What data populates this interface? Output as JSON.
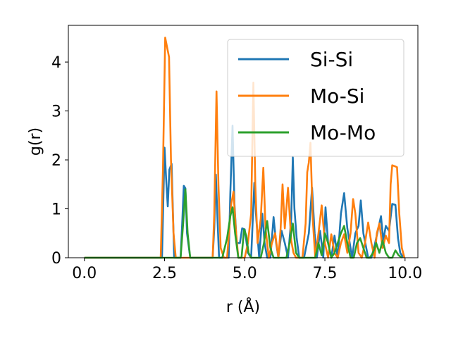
{
  "chart_data": {
    "type": "line",
    "xlabel": "r (Å)",
    "ylabel": "g(r)",
    "xlim": [
      -0.5,
      10.4
    ],
    "ylim": [
      0,
      4.75
    ],
    "xticks": [
      0.0,
      2.5,
      5.0,
      7.5,
      10.0
    ],
    "xtick_labels": [
      "0.0",
      "2.5",
      "5.0",
      "7.5",
      "10.0"
    ],
    "yticks": [
      0,
      1,
      2,
      3,
      4
    ],
    "ytick_labels": [
      "0",
      "1",
      "2",
      "3",
      "4"
    ],
    "grid": false,
    "legend_position": "top-right",
    "series": [
      {
        "name": "Si-Si",
        "color": "#1f77b4",
        "x": [
          0,
          2.35,
          2.42,
          2.5,
          2.55,
          2.6,
          2.65,
          2.72,
          2.8,
          2.88,
          3.0,
          3.05,
          3.1,
          3.15,
          3.2,
          3.3,
          3.45,
          4.0,
          4.05,
          4.1,
          4.15,
          4.2,
          4.3,
          4.5,
          4.55,
          4.62,
          4.68,
          4.75,
          4.85,
          4.92,
          5.0,
          5.1,
          5.2,
          5.3,
          5.35,
          5.45,
          5.55,
          5.62,
          5.7,
          5.8,
          5.9,
          5.98,
          6.05,
          6.15,
          6.25,
          6.35,
          6.45,
          6.5,
          6.55,
          6.62,
          6.7,
          6.85,
          7.0,
          7.1,
          7.18,
          7.25,
          7.35,
          7.45,
          7.52,
          7.6,
          7.7,
          7.8,
          7.9,
          8.0,
          8.1,
          8.2,
          8.35,
          8.45,
          8.55,
          8.62,
          8.7,
          8.85,
          8.95,
          9.05,
          9.15,
          9.25,
          9.32,
          9.4,
          9.5,
          9.6,
          9.7,
          9.78,
          9.85,
          9.95
        ],
        "values": [
          0,
          0,
          0,
          2.25,
          1.6,
          1.05,
          1.8,
          1.92,
          0,
          0,
          0,
          0.7,
          1.47,
          1.42,
          0.5,
          0,
          0,
          0,
          0.6,
          1.7,
          0.8,
          0,
          0,
          0,
          1.3,
          2.7,
          1.1,
          0.3,
          0.3,
          0.6,
          0.58,
          0.1,
          0,
          1.53,
          0.9,
          0,
          0.9,
          0.3,
          0,
          0,
          0.83,
          0.3,
          0,
          0.55,
          0.3,
          0,
          0.8,
          2.05,
          1.0,
          0.4,
          0,
          0,
          0.5,
          1.43,
          0.5,
          0,
          0.55,
          0,
          1.03,
          0.3,
          0,
          0.45,
          0,
          0.9,
          1.32,
          0.6,
          0,
          0.5,
          0.65,
          1.17,
          0.5,
          0,
          0,
          0.25,
          0.55,
          0.85,
          0.35,
          0.65,
          0.55,
          1.1,
          1.08,
          0.4,
          0.1,
          0
        ],
        "legend_label": "Si-Si"
      },
      {
        "name": "Mo-Si",
        "color": "#ff7f0e",
        "x": [
          0,
          2.38,
          2.45,
          2.52,
          2.58,
          2.64,
          2.7,
          2.78,
          2.85,
          3.9,
          4.0,
          4.05,
          4.12,
          4.18,
          4.25,
          4.35,
          4.45,
          4.52,
          4.58,
          4.65,
          4.72,
          4.8,
          5.0,
          5.1,
          5.2,
          5.27,
          5.33,
          5.4,
          5.5,
          5.58,
          5.65,
          5.75,
          5.85,
          5.95,
          6.05,
          6.12,
          6.18,
          6.25,
          6.35,
          6.45,
          6.52,
          6.6,
          6.7,
          6.8,
          6.9,
          6.95,
          7.0,
          7.05,
          7.12,
          7.2,
          7.3,
          7.4,
          7.5,
          7.6,
          7.7,
          7.8,
          7.9,
          8.0,
          8.1,
          8.2,
          8.3,
          8.38,
          8.45,
          8.55,
          8.65,
          8.75,
          8.85,
          8.95,
          9.05,
          9.12,
          9.2,
          9.3,
          9.4,
          9.5,
          9.55,
          9.6,
          9.68,
          9.75,
          9.82,
          9.9,
          9.98
        ],
        "values": [
          0,
          0,
          1.8,
          4.5,
          4.3,
          4.1,
          2.0,
          0.5,
          0,
          0,
          0,
          0.9,
          3.4,
          1.5,
          0.2,
          0,
          0,
          0.6,
          1.1,
          1.35,
          0.6,
          0,
          0,
          0.3,
          0.9,
          3.58,
          1.5,
          0.3,
          0.8,
          1.84,
          0.6,
          0,
          0.3,
          0.5,
          0,
          0.6,
          1.5,
          0.6,
          1.43,
          0.35,
          0.1,
          0,
          0,
          0,
          0.7,
          1.75,
          1.95,
          2.35,
          0.8,
          0,
          0.5,
          1.07,
          0.3,
          0,
          0.48,
          0.1,
          0,
          0.3,
          0.48,
          0.1,
          0.5,
          1.2,
          0.9,
          0.1,
          0,
          0.3,
          0.72,
          0.3,
          0,
          0.5,
          0.7,
          0.2,
          0.45,
          0.3,
          1.5,
          1.89,
          1.87,
          1.85,
          0.9,
          0.2,
          0
        ],
        "legend_label": "Mo-Si"
      },
      {
        "name": "Mo-Mo",
        "color": "#2ca02c",
        "x": [
          0,
          3.0,
          3.08,
          3.15,
          3.22,
          3.3,
          3.45,
          4.3,
          4.45,
          4.55,
          4.62,
          4.7,
          4.8,
          4.9,
          4.98,
          5.05,
          5.12,
          5.2,
          5.5,
          5.6,
          5.7,
          5.8,
          5.9,
          6.0,
          6.3,
          6.4,
          6.5,
          6.6,
          6.7,
          7.2,
          7.3,
          7.4,
          7.5,
          7.6,
          7.7,
          7.8,
          7.9,
          8.0,
          8.1,
          8.2,
          8.3,
          8.4,
          8.5,
          8.6,
          8.7,
          8.8,
          8.9,
          9.0,
          9.1,
          9.2,
          9.3,
          9.4,
          9.5,
          9.6,
          9.7,
          9.8,
          9.9
        ],
        "values": [
          0,
          0,
          0.7,
          1.4,
          0.5,
          0,
          0,
          0,
          0.4,
          0.85,
          1.03,
          0.5,
          0,
          0,
          0.58,
          0.45,
          0.1,
          0,
          0,
          0.3,
          0.75,
          0.2,
          0,
          0,
          0,
          0.3,
          0.7,
          0.1,
          0,
          0,
          0.3,
          0.05,
          0.5,
          0.3,
          0,
          0.1,
          0.3,
          0.5,
          0.65,
          0.3,
          0,
          0,
          0.3,
          0.4,
          0.2,
          0,
          0,
          0.1,
          0.3,
          0.1,
          0.35,
          0.1,
          0,
          0,
          0.15,
          0.05,
          0
        ],
        "legend_label": "Mo-Mo"
      }
    ]
  }
}
